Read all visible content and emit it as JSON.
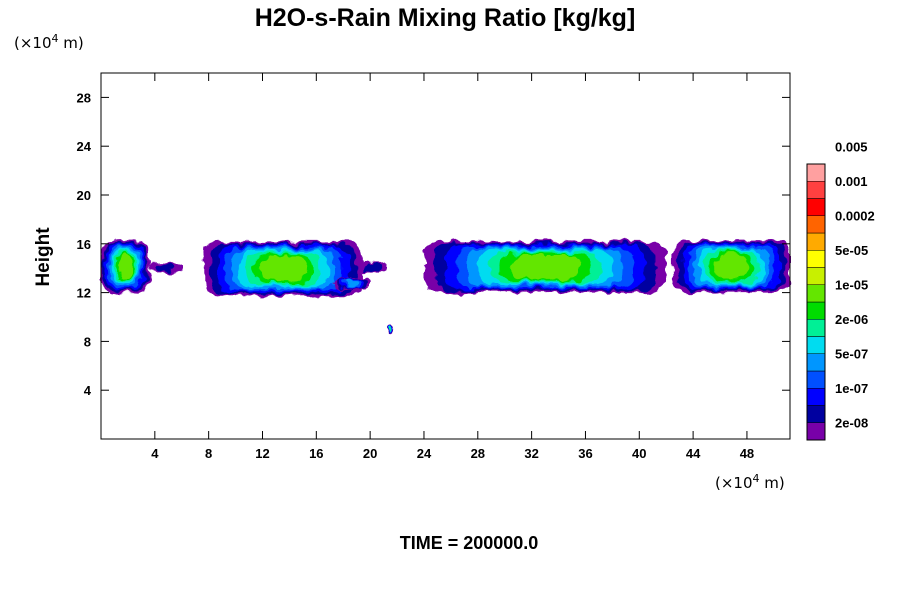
{
  "chart_data": {
    "type": "heatmap",
    "title": "H2O-s-Rain Mixing Ratio [kg/kg]",
    "ylabel": "Height",
    "x_unit": {
      "prefix": "(×10",
      "exp": "4",
      "suffix": " m)"
    },
    "y_unit": {
      "prefix": "(×10",
      "exp": "4",
      "suffix": " m)"
    },
    "xlim": [
      0,
      51.2
    ],
    "ylim": [
      0,
      30
    ],
    "x_ticks": [
      4,
      8,
      12,
      16,
      20,
      24,
      28,
      32,
      36,
      40,
      44,
      48
    ],
    "y_ticks": [
      4,
      8,
      12,
      16,
      20,
      24,
      28
    ],
    "legend": {
      "position": "right",
      "colors": [
        "#7800a8",
        "#0000a0",
        "#0000ff",
        "#0050ff",
        "#0096ff",
        "#00dcf0",
        "#00f096",
        "#00dc00",
        "#64e600",
        "#c8f000",
        "#ffff00",
        "#ffaa00",
        "#ff6400",
        "#ff0000",
        "#ff4040",
        "#ffa0a0"
      ],
      "labels": [
        "2e-08",
        "1e-07",
        "5e-07",
        "2e-06",
        "1e-05",
        "5e-05",
        "0.0002",
        "0.001",
        "0.005"
      ]
    },
    "features": [
      {
        "x0": 0,
        "x1": 3.6,
        "y0": 12.0,
        "y1": 16.3,
        "level": 8
      },
      {
        "x0": 3.6,
        "x1": 6.0,
        "y0": 13.7,
        "y1": 14.5,
        "level": 1
      },
      {
        "x0": 7.6,
        "x1": 19.5,
        "y0": 11.7,
        "y1": 16.2,
        "level": 8
      },
      {
        "x0": 19.3,
        "x1": 21.2,
        "y0": 13.8,
        "y1": 14.4,
        "level": 1
      },
      {
        "x0": 17.2,
        "x1": 20.0,
        "y0": 12.3,
        "y1": 13.2,
        "level": 4
      },
      {
        "x0": 21.3,
        "x1": 21.9,
        "y0": 8.6,
        "y1": 9.3,
        "level": 6
      },
      {
        "x0": 24.0,
        "x1": 42.0,
        "y0": 12.0,
        "y1": 16.2,
        "level": 8
      },
      {
        "x0": 42.5,
        "x1": 51.2,
        "y0": 12.0,
        "y1": 16.3,
        "level": 8
      }
    ]
  },
  "footer": "TIME = 200000.0"
}
